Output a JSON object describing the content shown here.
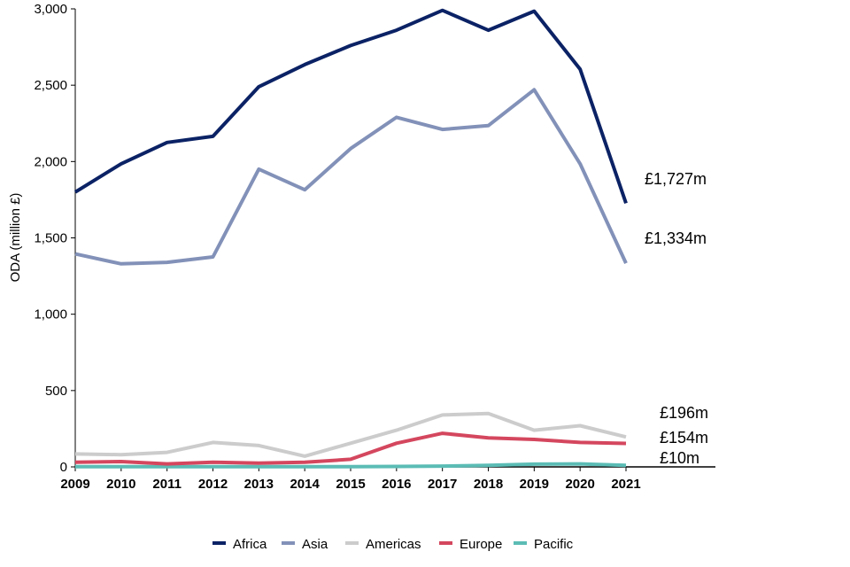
{
  "chart_data": {
    "type": "line",
    "title": "",
    "xlabel": "",
    "ylabel": "ODA (million £)",
    "x": [
      "2009",
      "2010",
      "2011",
      "2012",
      "2013",
      "2014",
      "2015",
      "2016",
      "2017",
      "2018",
      "2019",
      "2020",
      "2021"
    ],
    "ylim": [
      0,
      3000
    ],
    "yticks": [
      "0",
      "500",
      "1,000",
      "1,500",
      "2,000",
      "2,500",
      "3,000"
    ],
    "ytick_values": [
      0,
      500,
      1000,
      1500,
      2000,
      2500,
      3000
    ],
    "grid": false,
    "legend_position": "bottom",
    "series": [
      {
        "name": "Africa",
        "color": "#0b2265",
        "end_label": "£1,727m",
        "values": [
          1800,
          1985,
          2125,
          2165,
          2490,
          2635,
          2760,
          2860,
          2990,
          2860,
          2985,
          2605,
          1727
        ]
      },
      {
        "name": "Asia",
        "color": "#8291b8",
        "end_label": "£1,334m",
        "values": [
          1395,
          1330,
          1340,
          1375,
          1950,
          1815,
          2085,
          2290,
          2210,
          2235,
          2470,
          1985,
          1334
        ]
      },
      {
        "name": "Americas",
        "color": "#cccccc",
        "end_label": "£196m",
        "values": [
          85,
          80,
          95,
          160,
          140,
          70,
          155,
          240,
          340,
          350,
          240,
          270,
          196
        ]
      },
      {
        "name": "Europe",
        "color": "#d4475e",
        "end_label": "£154m",
        "values": [
          30,
          35,
          20,
          30,
          25,
          30,
          50,
          155,
          220,
          190,
          180,
          160,
          154
        ]
      },
      {
        "name": "Pacific",
        "color": "#5bbcb5",
        "end_label": "£10m",
        "values": [
          2,
          2,
          2,
          2,
          2,
          2,
          2,
          3,
          5,
          10,
          18,
          20,
          10
        ]
      }
    ]
  }
}
